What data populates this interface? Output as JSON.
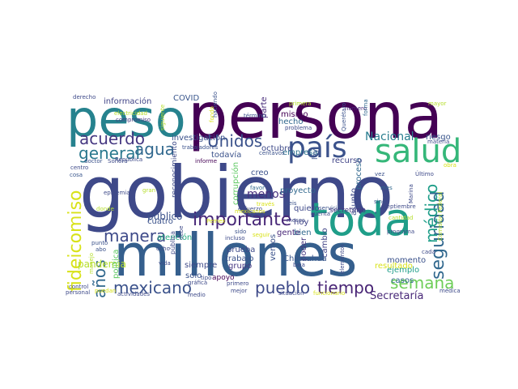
{
  "palette": {
    "dark_purple": "#440154",
    "indigo": "#472f7d",
    "blue": "#3b528b",
    "steel": "#31688e",
    "teal": "#21918c",
    "green_teal": "#27ad81",
    "green": "#5ec962",
    "lime": "#addc30",
    "yellow": "#d8e219"
  },
  "words": [
    {
      "text": "persona",
      "color": "#440154"
    },
    {
      "text": "gobierno",
      "color": "#3e4989"
    },
    {
      "text": "millones",
      "color": "#355f8d"
    },
    {
      "text": "peso",
      "color": "#26828e"
    },
    {
      "text": "toda",
      "color": "#1f9e89"
    },
    {
      "text": "salud",
      "color": "#35b779"
    },
    {
      "text": "país",
      "color": "#3b528b"
    },
    {
      "text": "fideicomiso",
      "color": "#d8e219"
    },
    {
      "text": "seguridad",
      "color": "#31688e"
    },
    {
      "text": "importante",
      "color": "#482878"
    },
    {
      "text": "manera",
      "color": "#3e4a89"
    },
    {
      "text": "Unidos",
      "color": "#3b528b"
    },
    {
      "text": "agua",
      "color": "#31688e"
    },
    {
      "text": "general",
      "color": "#2a788e"
    },
    {
      "text": "acuerdo",
      "color": "#453781"
    },
    {
      "text": "mexicano",
      "color": "#3b528b"
    },
    {
      "text": "pueblo",
      "color": "#3e4a89"
    },
    {
      "text": "tiempo",
      "color": "#482475"
    },
    {
      "text": "semana",
      "color": "#6ece58"
    },
    {
      "text": "años",
      "color": "#31688e"
    },
    {
      "text": "médico",
      "color": "#1f9e89"
    },
    {
      "text": "Nacional",
      "color": "#287d8e"
    },
    {
      "text": "menos",
      "color": "#472f7d"
    },
    {
      "text": "público",
      "color": "#3b528b"
    },
    {
      "text": "pandemia",
      "color": "#b5de2b"
    },
    {
      "text": "Secretaría",
      "color": "#482878"
    },
    {
      "text": "momento",
      "color": "#3b528b"
    },
    {
      "text": "COVID",
      "color": "#39568c"
    },
    {
      "text": "información",
      "color": "#414487"
    },
    {
      "text": "investigación",
      "color": "#3b528b"
    },
    {
      "text": "mismo",
      "color": "#440154"
    },
    {
      "text": "hecho",
      "color": "#31688e"
    },
    {
      "text": "empresa",
      "color": "#2c728e"
    },
    {
      "text": "octubre",
      "color": "#3e4a89"
    },
    {
      "text": "parte",
      "color": "#472c7a"
    },
    {
      "text": "riesgo",
      "color": "#39568c"
    },
    {
      "text": "proceso",
      "color": "#31688e"
    },
    {
      "text": "recurso",
      "color": "#414487"
    },
    {
      "text": "proyecto",
      "color": "#31688e"
    },
    {
      "text": "creo",
      "color": "#3b528b"
    },
    {
      "text": "quiero",
      "color": "#3e4989"
    },
    {
      "text": "hoy",
      "color": "#414487"
    },
    {
      "text": "gente",
      "color": "#482878"
    },
    {
      "text": "bien",
      "color": "#31688e"
    },
    {
      "text": "poder",
      "color": "#453781"
    },
    {
      "text": "cambio",
      "color": "#414487"
    },
    {
      "text": "vemos",
      "color": "#3b528b"
    },
    {
      "text": "grupo",
      "color": "#453781"
    },
    {
      "text": "trabajo",
      "color": "#3b528b"
    },
    {
      "text": "prueba",
      "color": "#3e4a89"
    },
    {
      "text": "apoyo",
      "color": "#440154"
    },
    {
      "text": "sólo",
      "color": "#3b528b"
    },
    {
      "text": "siempre",
      "color": "#3e4a89"
    },
    {
      "text": "atención",
      "color": "#27ad81"
    },
    {
      "text": "cuatro",
      "color": "#3b528b"
    },
    {
      "text": "todavía",
      "color": "#3b528b"
    },
    {
      "text": "corrupción",
      "color": "#5ec962"
    },
    {
      "text": "reconocimiento",
      "color": "#3e4a89"
    },
    {
      "text": "Chihuahua",
      "color": "#39568c"
    },
    {
      "text": "casos",
      "color": "#31688e"
    },
    {
      "text": "ejemplo",
      "color": "#1f9e89"
    },
    {
      "text": "resultado",
      "color": "#d8e219"
    },
    {
      "text": "secretario",
      "color": "#453781"
    },
    {
      "text": "asunto",
      "color": "#3e4a89"
    },
    {
      "text": "ley",
      "color": "#3b528b"
    },
    {
      "text": "mes",
      "color": "#31688e"
    },
    {
      "text": "Marina",
      "color": "#3e4a89"
    },
    {
      "text": "primera",
      "color": "#b5de2b"
    },
    {
      "text": "mayor",
      "color": "#b5de2b"
    },
    {
      "text": "derecho",
      "color": "#3e4a89"
    },
    {
      "text": "compromiso",
      "color": "#453781"
    },
    {
      "text": "siguiente",
      "color": "#b5de2b"
    },
    {
      "text": "haciendo",
      "color": "#3b528b"
    },
    {
      "text": "fondo",
      "color": "#d8e219"
    },
    {
      "text": "término",
      "color": "#3b528b"
    },
    {
      "text": "problema",
      "color": "#3e4a89"
    },
    {
      "text": "Querétaro",
      "color": "#3b528b"
    },
    {
      "text": "número",
      "color": "#482878"
    },
    {
      "text": "forma",
      "color": "#31688e"
    },
    {
      "text": "materia",
      "color": "#3e4a89"
    },
    {
      "text": "electricidad",
      "color": "#b5de2b"
    },
    {
      "text": "República",
      "color": "#3e4a89"
    },
    {
      "text": "Sonora",
      "color": "#3e4a89"
    },
    {
      "text": "doctor",
      "color": "#3b528b"
    },
    {
      "text": "centro",
      "color": "#3e4a89"
    },
    {
      "text": "cosa",
      "color": "#39568c"
    },
    {
      "text": "trabajadores",
      "color": "#3b528b"
    },
    {
      "text": "centavos",
      "color": "#3b528b"
    },
    {
      "text": "informe",
      "color": "#440154"
    },
    {
      "text": "favor",
      "color": "#31688e"
    },
    {
      "text": "vez",
      "color": "#3b528b"
    },
    {
      "text": "Último",
      "color": "#3e4a89"
    },
    {
      "text": "obra",
      "color": "#d8e219"
    },
    {
      "text": "epidemia",
      "color": "#3e4a89"
    },
    {
      "text": "gran",
      "color": "#b5de2b"
    },
    {
      "text": "donde",
      "color": "#b5de2b"
    },
    {
      "text": "esfuerzo",
      "color": "#3e4a89"
    },
    {
      "text": "seis",
      "color": "#3b528b"
    },
    {
      "text": "meses",
      "color": "#3e4a89"
    },
    {
      "text": "servicio",
      "color": "#3b528b"
    },
    {
      "text": "septiembre",
      "color": "#3e4a89"
    },
    {
      "text": "sino",
      "color": "#3b528b"
    },
    {
      "text": "cuenta",
      "color": "#3e4a89"
    },
    {
      "text": "cantidad",
      "color": "#b5de2b"
    },
    {
      "text": "Comisión Federal",
      "color": "#b5de2b"
    },
    {
      "text": "programa",
      "color": "#3e4a89"
    },
    {
      "text": "cada",
      "color": "#3e4a89"
    },
    {
      "text": "punto",
      "color": "#3b528b"
    },
    {
      "text": "abo",
      "color": "#3b528b"
    },
    {
      "text": "manejo",
      "color": "#b5de2b"
    },
    {
      "text": "política",
      "color": "#5ec962"
    },
    {
      "text": "pública",
      "color": "#3e4a89"
    },
    {
      "text": "debe",
      "color": "#3e4a89"
    },
    {
      "text": "vida",
      "color": "#3e4a89"
    },
    {
      "text": "ocho",
      "color": "#3e4a89"
    },
    {
      "text": "baja",
      "color": "#3e4a89"
    },
    {
      "text": "incluso",
      "color": "#3e4a89"
    },
    {
      "text": "sido",
      "color": "#3b528b"
    },
    {
      "text": "elementos",
      "color": "#3e4a89"
    },
    {
      "text": "tipo",
      "color": "#3e4a89"
    },
    {
      "text": "gráfica",
      "color": "#3e4a89"
    },
    {
      "text": "primero",
      "color": "#3e4a89"
    },
    {
      "text": "mejor",
      "color": "#3e4a89"
    },
    {
      "text": "situación",
      "color": "#3e4a89"
    },
    {
      "text": "funcionario",
      "color": "#d8e219"
    },
    {
      "text": "médica",
      "color": "#3e4a89"
    },
    {
      "text": "control",
      "color": "#3e4a89"
    },
    {
      "text": "personal",
      "color": "#3e4a89"
    },
    {
      "text": "puedan",
      "color": "#d8e219"
    },
    {
      "text": "actividades",
      "color": "#3e4a89"
    },
    {
      "text": "medio",
      "color": "#3e4a89"
    },
    {
      "text": "mexicanos",
      "color": "#d8e219"
    },
    {
      "text": "través",
      "color": "#d8e219"
    },
    {
      "text": "Pemex",
      "color": "#d8e219"
    },
    {
      "text": "seguir",
      "color": "#d8e219"
    }
  ]
}
